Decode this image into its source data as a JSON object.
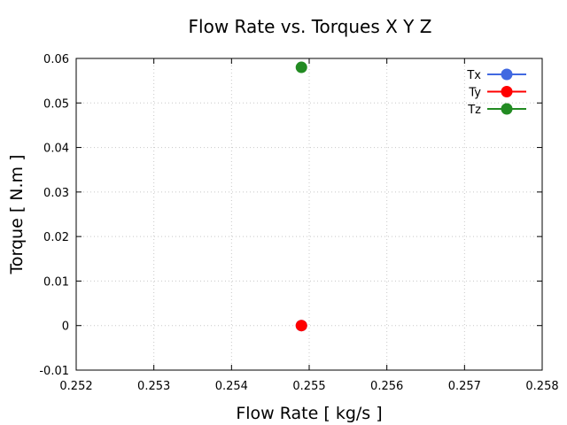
{
  "chart_data": {
    "type": "scatter",
    "title": "Flow Rate vs. Torques X Y Z",
    "xlabel": "Flow Rate [ kg/s ]",
    "ylabel": "Torque [ N.m ]",
    "xlim": [
      0.252,
      0.258
    ],
    "ylim": [
      -0.01,
      0.06
    ],
    "xticks": [
      "0.252",
      "0.253",
      "0.254",
      "0.255",
      "0.256",
      "0.257",
      "0.258"
    ],
    "yticks": [
      "-0.01",
      "0",
      "0.01",
      "0.02",
      "0.03",
      "0.04",
      "0.05",
      "0.06"
    ],
    "grid": true,
    "legend_position": "top-right",
    "series": [
      {
        "name": "Tx",
        "color": "#4169e1",
        "points": [
          [
            0.2549,
            0.0
          ]
        ]
      },
      {
        "name": "Ty",
        "color": "#ff0000",
        "points": [
          [
            0.2549,
            0.0
          ]
        ]
      },
      {
        "name": "Tz",
        "color": "#228b22",
        "points": [
          [
            0.2549,
            0.058
          ]
        ]
      }
    ]
  }
}
